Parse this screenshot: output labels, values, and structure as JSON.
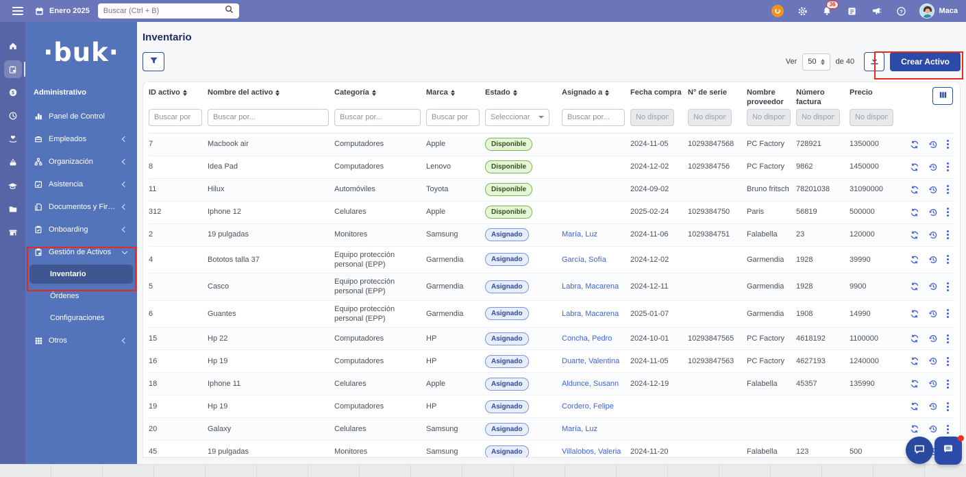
{
  "topbar": {
    "date_label": "Enero 2025",
    "search_placeholder": "Buscar (Ctrl + B)",
    "notifications_badge": "36",
    "user_name": "Maca"
  },
  "sidebar": {
    "logo_text": "·buk·",
    "section_label": "Administrativo",
    "rail_selected_index": 1,
    "rail_icons": [
      "home-icon",
      "clipboard-icon",
      "money-icon",
      "clock-icon",
      "benefits-icon",
      "celebration-icon",
      "training-icon",
      "folder-icon",
      "store-icon"
    ],
    "menu": [
      {
        "label": "Panel de Control",
        "icon": "dashboard-icon",
        "chevron": ""
      },
      {
        "label": "Empleados",
        "icon": "employees-icon",
        "chevron": "left"
      },
      {
        "label": "Organización",
        "icon": "organization-icon",
        "chevron": "left"
      },
      {
        "label": "Asistencia",
        "icon": "attendance-icon",
        "chevron": "left"
      },
      {
        "label": "Documentos y Firma",
        "icon": "documents-icon",
        "chevron": "left"
      },
      {
        "label": "Onboarding",
        "icon": "onboarding-icon",
        "chevron": "left"
      },
      {
        "label": "Gestión de Activos",
        "icon": "assets-icon",
        "chevron": "down",
        "children": [
          {
            "label": "Inventario",
            "selected": true
          },
          {
            "label": "Órdenes",
            "selected": false
          },
          {
            "label": "Configuraciones",
            "selected": false
          }
        ]
      },
      {
        "label": "Otros",
        "icon": "grid-icon",
        "chevron": "left"
      }
    ]
  },
  "main": {
    "page_title": "Inventario",
    "toolbar": {
      "ver_label": "Ver",
      "page_size": "50",
      "total_label": "de 40",
      "create_button_label": "Crear Activo"
    },
    "table": {
      "columns": [
        {
          "label": "ID activo",
          "sortable": true
        },
        {
          "label": "Nombre del activo",
          "sortable": true
        },
        {
          "label": "Categoría",
          "sortable": true
        },
        {
          "label": "Marca",
          "sortable": true
        },
        {
          "label": "Estado",
          "sortable": true
        },
        {
          "label": "Asignado a",
          "sortable": true
        },
        {
          "label": "Fecha compra",
          "sortable": false
        },
        {
          "label": "N° de serie",
          "sortable": false
        },
        {
          "label": "Nombre proveedor",
          "sortable": false
        },
        {
          "label": "Número factura",
          "sortable": false
        },
        {
          "label": "Precio",
          "sortable": false
        }
      ],
      "filters": [
        {
          "type": "text",
          "placeholder": "Buscar por"
        },
        {
          "type": "text",
          "placeholder": "Buscar por..."
        },
        {
          "type": "text",
          "placeholder": "Buscar por..."
        },
        {
          "type": "text",
          "placeholder": "Buscar por"
        },
        {
          "type": "select",
          "placeholder": "Seleccionar"
        },
        {
          "type": "text",
          "placeholder": "Buscar por..."
        },
        {
          "type": "disabled",
          "placeholder": "No disponible"
        },
        {
          "type": "disabled",
          "placeholder": "No disponible"
        },
        {
          "type": "disabled",
          "placeholder": "No disponible"
        },
        {
          "type": "disabled",
          "placeholder": "No disponible"
        },
        {
          "type": "disabled",
          "placeholder": "No disponible"
        }
      ],
      "status_variant": {
        "Disponible": "green",
        "Asignado": "blue"
      },
      "rows": [
        {
          "id": "7",
          "name": "Macbook air",
          "category": "Computadores",
          "brand": "Apple",
          "status": "Disponible",
          "assigned": "",
          "purchase_date": "2024-11-05",
          "serial": "10293847568",
          "provider": "PC Factory",
          "invoice": "728921",
          "price": "1350000"
        },
        {
          "id": "8",
          "name": "Idea Pad",
          "category": "Computadores",
          "brand": "Lenovo",
          "status": "Disponible",
          "assigned": "",
          "purchase_date": "2024-12-02",
          "serial": "1029384756",
          "provider": "PC Factory",
          "invoice": "9862",
          "price": "1450000"
        },
        {
          "id": "11",
          "name": "Hilux",
          "category": "Automóviles",
          "brand": "Toyota",
          "status": "Disponible",
          "assigned": "",
          "purchase_date": "2024-09-02",
          "serial": "",
          "provider": "Bruno fritsch",
          "invoice": "78201038",
          "price": "31090000"
        },
        {
          "id": "312",
          "name": "Iphone 12",
          "category": "Celulares",
          "brand": "Apple",
          "status": "Disponible",
          "assigned": "",
          "purchase_date": "2025-02-24",
          "serial": "1029384750",
          "provider": "Paris",
          "invoice": "56819",
          "price": "500000"
        },
        {
          "id": "2",
          "name": "19 pulgadas",
          "category": "Monitores",
          "brand": "Samsung",
          "status": "Asignado",
          "assigned": "María, Luz",
          "purchase_date": "2024-11-06",
          "serial": "1029384751",
          "provider": "Falabella",
          "invoice": "23",
          "price": "120000"
        },
        {
          "id": "4",
          "name": "Bototos talla 37",
          "category": "Equipo protección personal (EPP)",
          "brand": "Garmendia",
          "status": "Asignado",
          "assigned": "García, Sofía",
          "purchase_date": "2024-12-02",
          "serial": "",
          "provider": "Garmendia",
          "invoice": "1928",
          "price": "39990"
        },
        {
          "id": "5",
          "name": "Casco",
          "category": "Equipo protección personal (EPP)",
          "brand": "Garmendia",
          "status": "Asignado",
          "assigned": "Labra, Macarena",
          "purchase_date": "2024-12-11",
          "serial": "",
          "provider": "Garmendia",
          "invoice": "1928",
          "price": "9900"
        },
        {
          "id": "6",
          "name": "Guantes",
          "category": "Equipo protección personal (EPP)",
          "brand": "Garmendia",
          "status": "Asignado",
          "assigned": "Labra, Macarena",
          "purchase_date": "2025-01-07",
          "serial": "",
          "provider": "Garmendia",
          "invoice": "1908",
          "price": "14990"
        },
        {
          "id": "15",
          "name": "Hp 22",
          "category": "Computadores",
          "brand": "HP",
          "status": "Asignado",
          "assigned": "Concha, Pedro",
          "purchase_date": "2024-10-01",
          "serial": "10293847565",
          "provider": "PC Factory",
          "invoice": "4618192",
          "price": "1100000"
        },
        {
          "id": "16",
          "name": "Hp 19",
          "category": "Computadores",
          "brand": "HP",
          "status": "Asignado",
          "assigned": "Duarte, Valentina",
          "purchase_date": "2024-11-05",
          "serial": "10293847563",
          "provider": "PC Factory",
          "invoice": "4627193",
          "price": "1240000"
        },
        {
          "id": "18",
          "name": "Iphone 11",
          "category": "Celulares",
          "brand": "Apple",
          "status": "Asignado",
          "assigned": "Aldunce, Susann",
          "purchase_date": "2024-12-19",
          "serial": "",
          "provider": "Falabella",
          "invoice": "45357",
          "price": "135990"
        },
        {
          "id": "19",
          "name": "Hp 19",
          "category": "Computadores",
          "brand": "HP",
          "status": "Asignado",
          "assigned": "Cordero, Felipe",
          "purchase_date": "",
          "serial": "",
          "provider": "",
          "invoice": "",
          "price": ""
        },
        {
          "id": "20",
          "name": "Galaxy",
          "category": "Celulares",
          "brand": "Samsung",
          "status": "Asignado",
          "assigned": "María, Luz",
          "purchase_date": "",
          "serial": "",
          "provider": "",
          "invoice": "",
          "price": ""
        },
        {
          "id": "45",
          "name": "19 pulgadas",
          "category": "Monitores",
          "brand": "Samsung",
          "status": "Asignado",
          "assigned": "Villalobos, Valeria",
          "purchase_date": "2024-11-20",
          "serial": "",
          "provider": "Falabella",
          "invoice": "123",
          "price": "500"
        }
      ]
    }
  },
  "colors": {
    "topbar_bg": "#6b75b9",
    "rail_bg": "#5765a7",
    "sidebar_bg": "#5373bb",
    "accent_navy": "#2c4aa7",
    "title_navy": "#1c2a5e",
    "link_blue": "#3d63d9",
    "action_blue": "#3b5ed4",
    "badge_green_bg": "#e6f5d8",
    "badge_green_border": "#76b94c",
    "badge_green_text": "#37511d",
    "badge_blue_bg": "#e8edfc",
    "badge_blue_border": "#7a95e4",
    "badge_blue_text": "#2c4aa6",
    "annotation_red": "#e8291c",
    "page_bg": "#f6f7f9"
  }
}
